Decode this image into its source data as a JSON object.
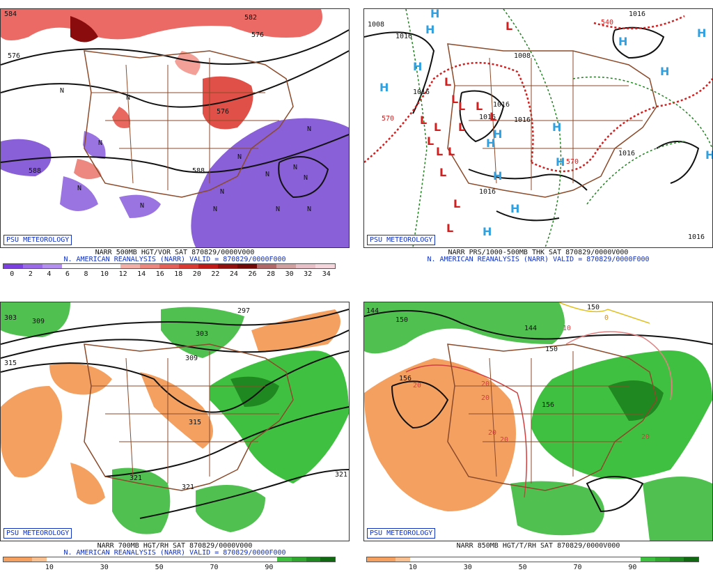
{
  "logo_text": "PSU METEOROLOGY",
  "panels": [
    {
      "caption_line1": "NARR 500MB HGT/VOR SAT 870829/0000V000",
      "caption_line2": "N. AMERICAN REANALYSIS (NARR) VALID = 870829/0000F000",
      "legend_colors": [
        "#7b3fe0",
        "#9b6ae8",
        "#b48ff0",
        "#ffffff",
        "#ffffff",
        "#ffffff",
        "#f2b0a8",
        "#ec8880",
        "#e46058",
        "#da3a34",
        "#c01a18",
        "#901010",
        "#700808",
        "#b06868",
        "#d0a0a0",
        "#e8c0c8",
        "#f4d6dc"
      ],
      "tick_labels": [
        "0",
        "2",
        "4",
        "6",
        "8",
        "10",
        "12",
        "14",
        "16",
        "18",
        "20",
        "22",
        "24",
        "26",
        "28",
        "30",
        "32",
        "34"
      ],
      "contour_labels": [
        "576",
        "582",
        "576",
        "588",
        "588",
        "576",
        "584"
      ],
      "symbol_labels": [
        "N",
        "N",
        "N",
        "N",
        "N",
        "N",
        "N",
        "N",
        "N",
        "N",
        "N",
        "N",
        "N",
        "N"
      ]
    },
    {
      "caption_line1": "NARR PRS/1000-500MB THK SAT 870829/0000V000",
      "caption_line2": "N. AMERICAN REANALYSIS (NARR) VALID = 870829/0000F000",
      "isobar_labels": [
        "1008",
        "1016",
        "1008",
        "1016",
        "1016",
        "1016",
        "1016",
        "1016",
        "1016",
        "1016",
        "1016"
      ],
      "thickness_labels": [
        "570",
        "540",
        "570"
      ],
      "high_symbol": "H",
      "low_symbol": "L"
    },
    {
      "caption_line1": "NARR 700MB HGT/RH SAT 870829/0000V000",
      "caption_line2": "N. AMERICAN REANALYSIS (NARR) VALID = 870829/0000F000",
      "legend_colors": [
        "#f4a060",
        "#f4a060",
        "#f8c090",
        "#ffffff",
        "#ffffff",
        "#ffffff",
        "#ffffff",
        "#ffffff",
        "#ffffff",
        "#ffffff",
        "#ffffff",
        "#ffffff",
        "#ffffff",
        "#ffffff",
        "#ffffff",
        "#ffffff",
        "#ffffff",
        "#ffffff",
        "#ffffff",
        "#40c040",
        "#30a830",
        "#208820",
        "#106810"
      ],
      "tick_labels": [
        "10",
        "30",
        "50",
        "70",
        "90"
      ],
      "contour_labels": [
        "303",
        "309",
        "297",
        "303",
        "309",
        "315",
        "315",
        "321",
        "321",
        "321"
      ]
    },
    {
      "caption_line1": "NARR 850MB HGT/T/RH SAT 870829/0000V000",
      "caption_line2": "",
      "legend_colors": [
        "#f4a060",
        "#f4a060",
        "#f8c090",
        "#ffffff",
        "#ffffff",
        "#ffffff",
        "#ffffff",
        "#ffffff",
        "#ffffff",
        "#ffffff",
        "#ffffff",
        "#ffffff",
        "#ffffff",
        "#ffffff",
        "#ffffff",
        "#ffffff",
        "#ffffff",
        "#ffffff",
        "#ffffff",
        "#40c040",
        "#30a830",
        "#208820",
        "#106810"
      ],
      "tick_labels": [
        "10",
        "30",
        "50",
        "70",
        "90"
      ],
      "contour_labels": [
        "144",
        "150",
        "156",
        "150",
        "144",
        "156",
        "150"
      ],
      "temp_labels": [
        "10",
        "0",
        "20",
        "20",
        "20",
        "20",
        "20",
        "20"
      ]
    }
  ]
}
